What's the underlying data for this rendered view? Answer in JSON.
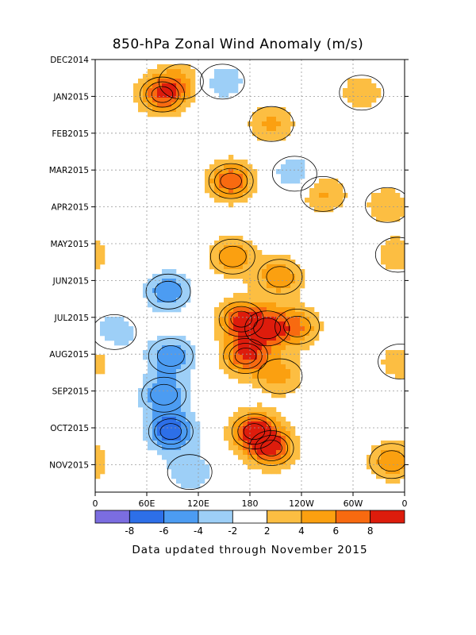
{
  "chart_data": {
    "type": "heatmap",
    "title": "850-hPa Zonal Wind Anomaly (m/s)",
    "footer": "Data updated through November 2015",
    "y_tick_labels": [
      "DEC2014",
      "JAN2015",
      "FEB2015",
      "MAR2015",
      "APR2015",
      "MAY2015",
      "JUN2015",
      "JUL2015",
      "AUG2015",
      "SEP2015",
      "OCT2015",
      "NOV2015"
    ],
    "x_tick_labels": [
      "0",
      "60E",
      "120E",
      "180",
      "120W",
      "60W",
      "0"
    ],
    "x_tick_lon": [
      0,
      60,
      120,
      180,
      240,
      300,
      360
    ],
    "y_range_months": [
      0,
      11.7
    ],
    "x_range_lon": [
      0,
      360
    ],
    "grid": true,
    "contour_interval": 2,
    "colorbar": {
      "tick_labels": [
        "-8",
        "-6",
        "-4",
        "-2",
        "2",
        "4",
        "6",
        "8"
      ],
      "bounds": [
        -10,
        -8,
        -6,
        -4,
        -2,
        2,
        4,
        6,
        8,
        10
      ],
      "colors": [
        "#7b6de0",
        "#2d6fe8",
        "#4c9cf2",
        "#9dcff7",
        "#ffffff",
        "#fcbe42",
        "#fba010",
        "#f86a10",
        "#dd1c0c"
      ]
    },
    "anomaly_centers": [
      {
        "lon": 78,
        "month": 0.95,
        "value": 7.5
      },
      {
        "lon": 100,
        "month": 0.6,
        "value": 3.5
      },
      {
        "lon": 148,
        "month": 0.6,
        "value": -3.5
      },
      {
        "lon": 205,
        "month": 1.75,
        "value": 4.5
      },
      {
        "lon": 158,
        "month": 3.3,
        "value": 7.5
      },
      {
        "lon": 265,
        "month": 3.65,
        "value": 4.5
      },
      {
        "lon": 340,
        "month": 3.95,
        "value": 3.5
      },
      {
        "lon": 232,
        "month": 3.1,
        "value": -3.5
      },
      {
        "lon": 160,
        "month": 5.35,
        "value": 5.5
      },
      {
        "lon": 215,
        "month": 5.9,
        "value": 5.5
      },
      {
        "lon": 352,
        "month": 5.3,
        "value": 3.5
      },
      {
        "lon": 85,
        "month": 6.3,
        "value": -5.5
      },
      {
        "lon": 170,
        "month": 7.05,
        "value": 7.5
      },
      {
        "lon": 200,
        "month": 7.3,
        "value": 6.5
      },
      {
        "lon": 235,
        "month": 7.25,
        "value": 5.5
      },
      {
        "lon": 175,
        "month": 8.05,
        "value": 7.5
      },
      {
        "lon": 88,
        "month": 8.05,
        "value": -5.5
      },
      {
        "lon": 22,
        "month": 7.4,
        "value": -3.5
      },
      {
        "lon": 215,
        "month": 8.6,
        "value": 4.5
      },
      {
        "lon": 185,
        "month": 10.1,
        "value": 8.5
      },
      {
        "lon": 205,
        "month": 10.55,
        "value": 7.5
      },
      {
        "lon": 88,
        "month": 10.1,
        "value": -7.5
      },
      {
        "lon": 80,
        "month": 9.1,
        "value": -5.5
      },
      {
        "lon": 110,
        "month": 11.2,
        "value": -3.5
      },
      {
        "lon": 345,
        "month": 10.9,
        "value": 5.5
      },
      {
        "lon": 355,
        "month": 8.2,
        "value": 3.5
      },
      {
        "lon": 310,
        "month": 0.9,
        "value": 3.5
      }
    ]
  }
}
